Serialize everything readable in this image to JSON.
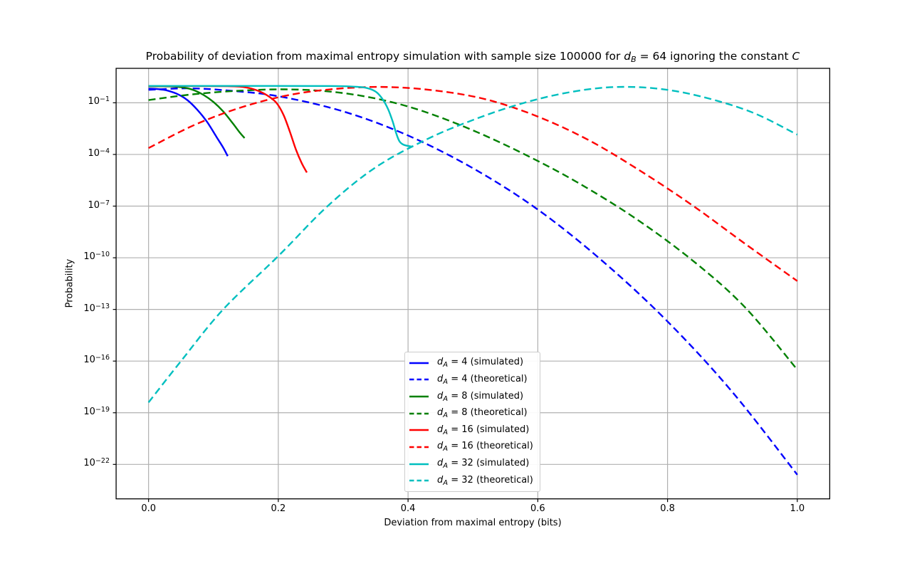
{
  "figure": {
    "xlabel": "Deviation from maximal entropy (bits)",
    "ylabel": "Probability",
    "background": "#ffffff",
    "title_segments": [
      {
        "text": "Probability of deviation from maximal entropy simulation with sample size 100000 for "
      },
      {
        "text": "d",
        "italic": true
      },
      {
        "text": "B",
        "italic": true,
        "sub": true
      },
      {
        "text": " = 64 ignoring the constant "
      },
      {
        "text": "C",
        "italic": true
      }
    ]
  },
  "axes": {
    "x_tick_labels": [
      "0.0",
      "0.2",
      "0.4",
      "0.6",
      "0.8",
      "1.0"
    ],
    "x_tick_values": [
      0.0,
      0.2,
      0.4,
      0.6,
      0.8,
      1.0
    ],
    "y_tick_exponents": [
      -1,
      -4,
      -7,
      -10,
      -13,
      -16,
      -19,
      -22
    ],
    "grid_color": "#b0b0b0",
    "spine_color": "#000000"
  },
  "legend": {
    "entries": [
      {
        "var": "d",
        "sub": "A",
        "rest": " = 4 (simulated)",
        "color": "#0000ff",
        "dashed": false
      },
      {
        "var": "d",
        "sub": "A",
        "rest": " = 4 (theoretical)",
        "color": "#0000ff",
        "dashed": true
      },
      {
        "var": "d",
        "sub": "A",
        "rest": " = 8 (simulated)",
        "color": "#008000",
        "dashed": false
      },
      {
        "var": "d",
        "sub": "A",
        "rest": " = 8 (theoretical)",
        "color": "#008000",
        "dashed": true
      },
      {
        "var": "d",
        "sub": "A",
        "rest": " = 16 (simulated)",
        "color": "#ff0000",
        "dashed": false
      },
      {
        "var": "d",
        "sub": "A",
        "rest": " = 16 (theoretical)",
        "color": "#ff0000",
        "dashed": true
      },
      {
        "var": "d",
        "sub": "A",
        "rest": " = 32 (simulated)",
        "color": "#00bfbf",
        "dashed": false
      },
      {
        "var": "d",
        "sub": "A",
        "rest": " = 32 (theoretical)",
        "color": "#00bfbf",
        "dashed": true
      }
    ]
  },
  "chart_data": {
    "type": "line",
    "title": "Probability of deviation from maximal entropy simulation with sample size 100000 for d_B = 64 ignoring the constant C",
    "xlabel": "Deviation from maximal entropy (bits)",
    "ylabel": "Probability",
    "xlim": [
      -0.05,
      1.05
    ],
    "ylim": [
      1e-24,
      10
    ],
    "yscale": "log",
    "grid": true,
    "legend_position": "lower center",
    "sample_size": "100000",
    "d_B": "64",
    "series": [
      {
        "name": "d_A = 4 (simulated)",
        "color": "#0000ff",
        "linestyle": "solid",
        "points_x_log10y": [
          [
            0,
            -0.18
          ],
          [
            0.01,
            -0.19
          ],
          [
            0.02,
            -0.23
          ],
          [
            0.03,
            -0.3
          ],
          [
            0.045,
            -0.5
          ],
          [
            0.06,
            -0.85
          ],
          [
            0.075,
            -1.4
          ],
          [
            0.09,
            -2.1
          ],
          [
            0.105,
            -3.0
          ],
          [
            0.115,
            -3.6
          ],
          [
            0.122,
            -4.1
          ]
        ]
      },
      {
        "name": "d_A = 4 (theoretical)",
        "color": "#0000ff",
        "linestyle": "dashed",
        "points_x_log10y": [
          [
            0,
            -0.25
          ],
          [
            0.06,
            -0.16
          ],
          [
            0.12,
            -0.28
          ],
          [
            0.2,
            -0.62
          ],
          [
            0.3,
            -1.5
          ],
          [
            0.4,
            -2.9
          ],
          [
            0.5,
            -4.8
          ],
          [
            0.6,
            -7.2
          ],
          [
            0.7,
            -10.2
          ],
          [
            0.8,
            -13.7
          ],
          [
            0.9,
            -17.8
          ],
          [
            1.0,
            -22.6
          ]
        ]
      },
      {
        "name": "d_A = 8 (simulated)",
        "color": "#008000",
        "linestyle": "solid",
        "points_x_log10y": [
          [
            0,
            -0.045
          ],
          [
            0.02,
            -0.045
          ],
          [
            0.04,
            -0.06
          ],
          [
            0.055,
            -0.12
          ],
          [
            0.07,
            -0.27
          ],
          [
            0.085,
            -0.55
          ],
          [
            0.1,
            -0.95
          ],
          [
            0.115,
            -1.5
          ],
          [
            0.13,
            -2.2
          ],
          [
            0.14,
            -2.7
          ],
          [
            0.148,
            -3.05
          ]
        ]
      },
      {
        "name": "d_A = 8 (theoretical)",
        "color": "#008000",
        "linestyle": "dashed",
        "points_x_log10y": [
          [
            0,
            -0.84
          ],
          [
            0.07,
            -0.5
          ],
          [
            0.14,
            -0.3
          ],
          [
            0.21,
            -0.22
          ],
          [
            0.28,
            -0.35
          ],
          [
            0.35,
            -0.75
          ],
          [
            0.42,
            -1.45
          ],
          [
            0.5,
            -2.6
          ],
          [
            0.58,
            -4.0
          ],
          [
            0.66,
            -5.6
          ],
          [
            0.75,
            -7.7
          ],
          [
            0.84,
            -10.2
          ],
          [
            0.92,
            -12.9
          ],
          [
            1.0,
            -16.5
          ]
        ]
      },
      {
        "name": "d_A = 16 (simulated)",
        "color": "#ff0000",
        "linestyle": "solid",
        "points_x_log10y": [
          [
            0,
            -0.03
          ],
          [
            0.06,
            -0.03
          ],
          [
            0.12,
            -0.035
          ],
          [
            0.145,
            -0.08
          ],
          [
            0.165,
            -0.25
          ],
          [
            0.182,
            -0.55
          ],
          [
            0.197,
            -1.0
          ],
          [
            0.208,
            -1.7
          ],
          [
            0.218,
            -2.7
          ],
          [
            0.227,
            -3.7
          ],
          [
            0.236,
            -4.5
          ],
          [
            0.244,
            -5.05
          ]
        ]
      },
      {
        "name": "d_A = 16 (theoretical)",
        "color": "#ff0000",
        "linestyle": "dashed",
        "points_x_log10y": [
          [
            0,
            -3.63
          ],
          [
            0.07,
            -2.3
          ],
          [
            0.14,
            -1.3
          ],
          [
            0.21,
            -0.6
          ],
          [
            0.28,
            -0.22
          ],
          [
            0.36,
            -0.08
          ],
          [
            0.44,
            -0.28
          ],
          [
            0.52,
            -0.8
          ],
          [
            0.6,
            -1.8
          ],
          [
            0.68,
            -3.2
          ],
          [
            0.76,
            -5.0
          ],
          [
            0.84,
            -7.0
          ],
          [
            0.92,
            -9.2
          ],
          [
            1.0,
            -11.35
          ]
        ]
      },
      {
        "name": "d_A = 32 (simulated)",
        "color": "#00bfbf",
        "linestyle": "solid",
        "points_x_log10y": [
          [
            0,
            -0.02
          ],
          [
            0.15,
            -0.02
          ],
          [
            0.28,
            -0.025
          ],
          [
            0.315,
            -0.06
          ],
          [
            0.335,
            -0.13
          ],
          [
            0.35,
            -0.35
          ],
          [
            0.36,
            -0.75
          ],
          [
            0.369,
            -1.35
          ],
          [
            0.376,
            -2.05
          ],
          [
            0.382,
            -2.8
          ],
          [
            0.387,
            -3.25
          ],
          [
            0.394,
            -3.45
          ],
          [
            0.407,
            -3.55
          ]
        ]
      },
      {
        "name": "d_A = 32 (theoretical)",
        "color": "#00bfbf",
        "linestyle": "dashed",
        "points_x_log10y": [
          [
            0,
            -18.4
          ],
          [
            0.05,
            -16.0
          ],
          [
            0.115,
            -13.0
          ],
          [
            0.2,
            -9.9
          ],
          [
            0.276,
            -7.0
          ],
          [
            0.35,
            -4.75
          ],
          [
            0.43,
            -3.1
          ],
          [
            0.5,
            -2.0
          ],
          [
            0.57,
            -1.1
          ],
          [
            0.64,
            -0.45
          ],
          [
            0.71,
            -0.1
          ],
          [
            0.78,
            -0.16
          ],
          [
            0.85,
            -0.62
          ],
          [
            0.93,
            -1.55
          ],
          [
            1.0,
            -2.85
          ]
        ]
      }
    ]
  }
}
